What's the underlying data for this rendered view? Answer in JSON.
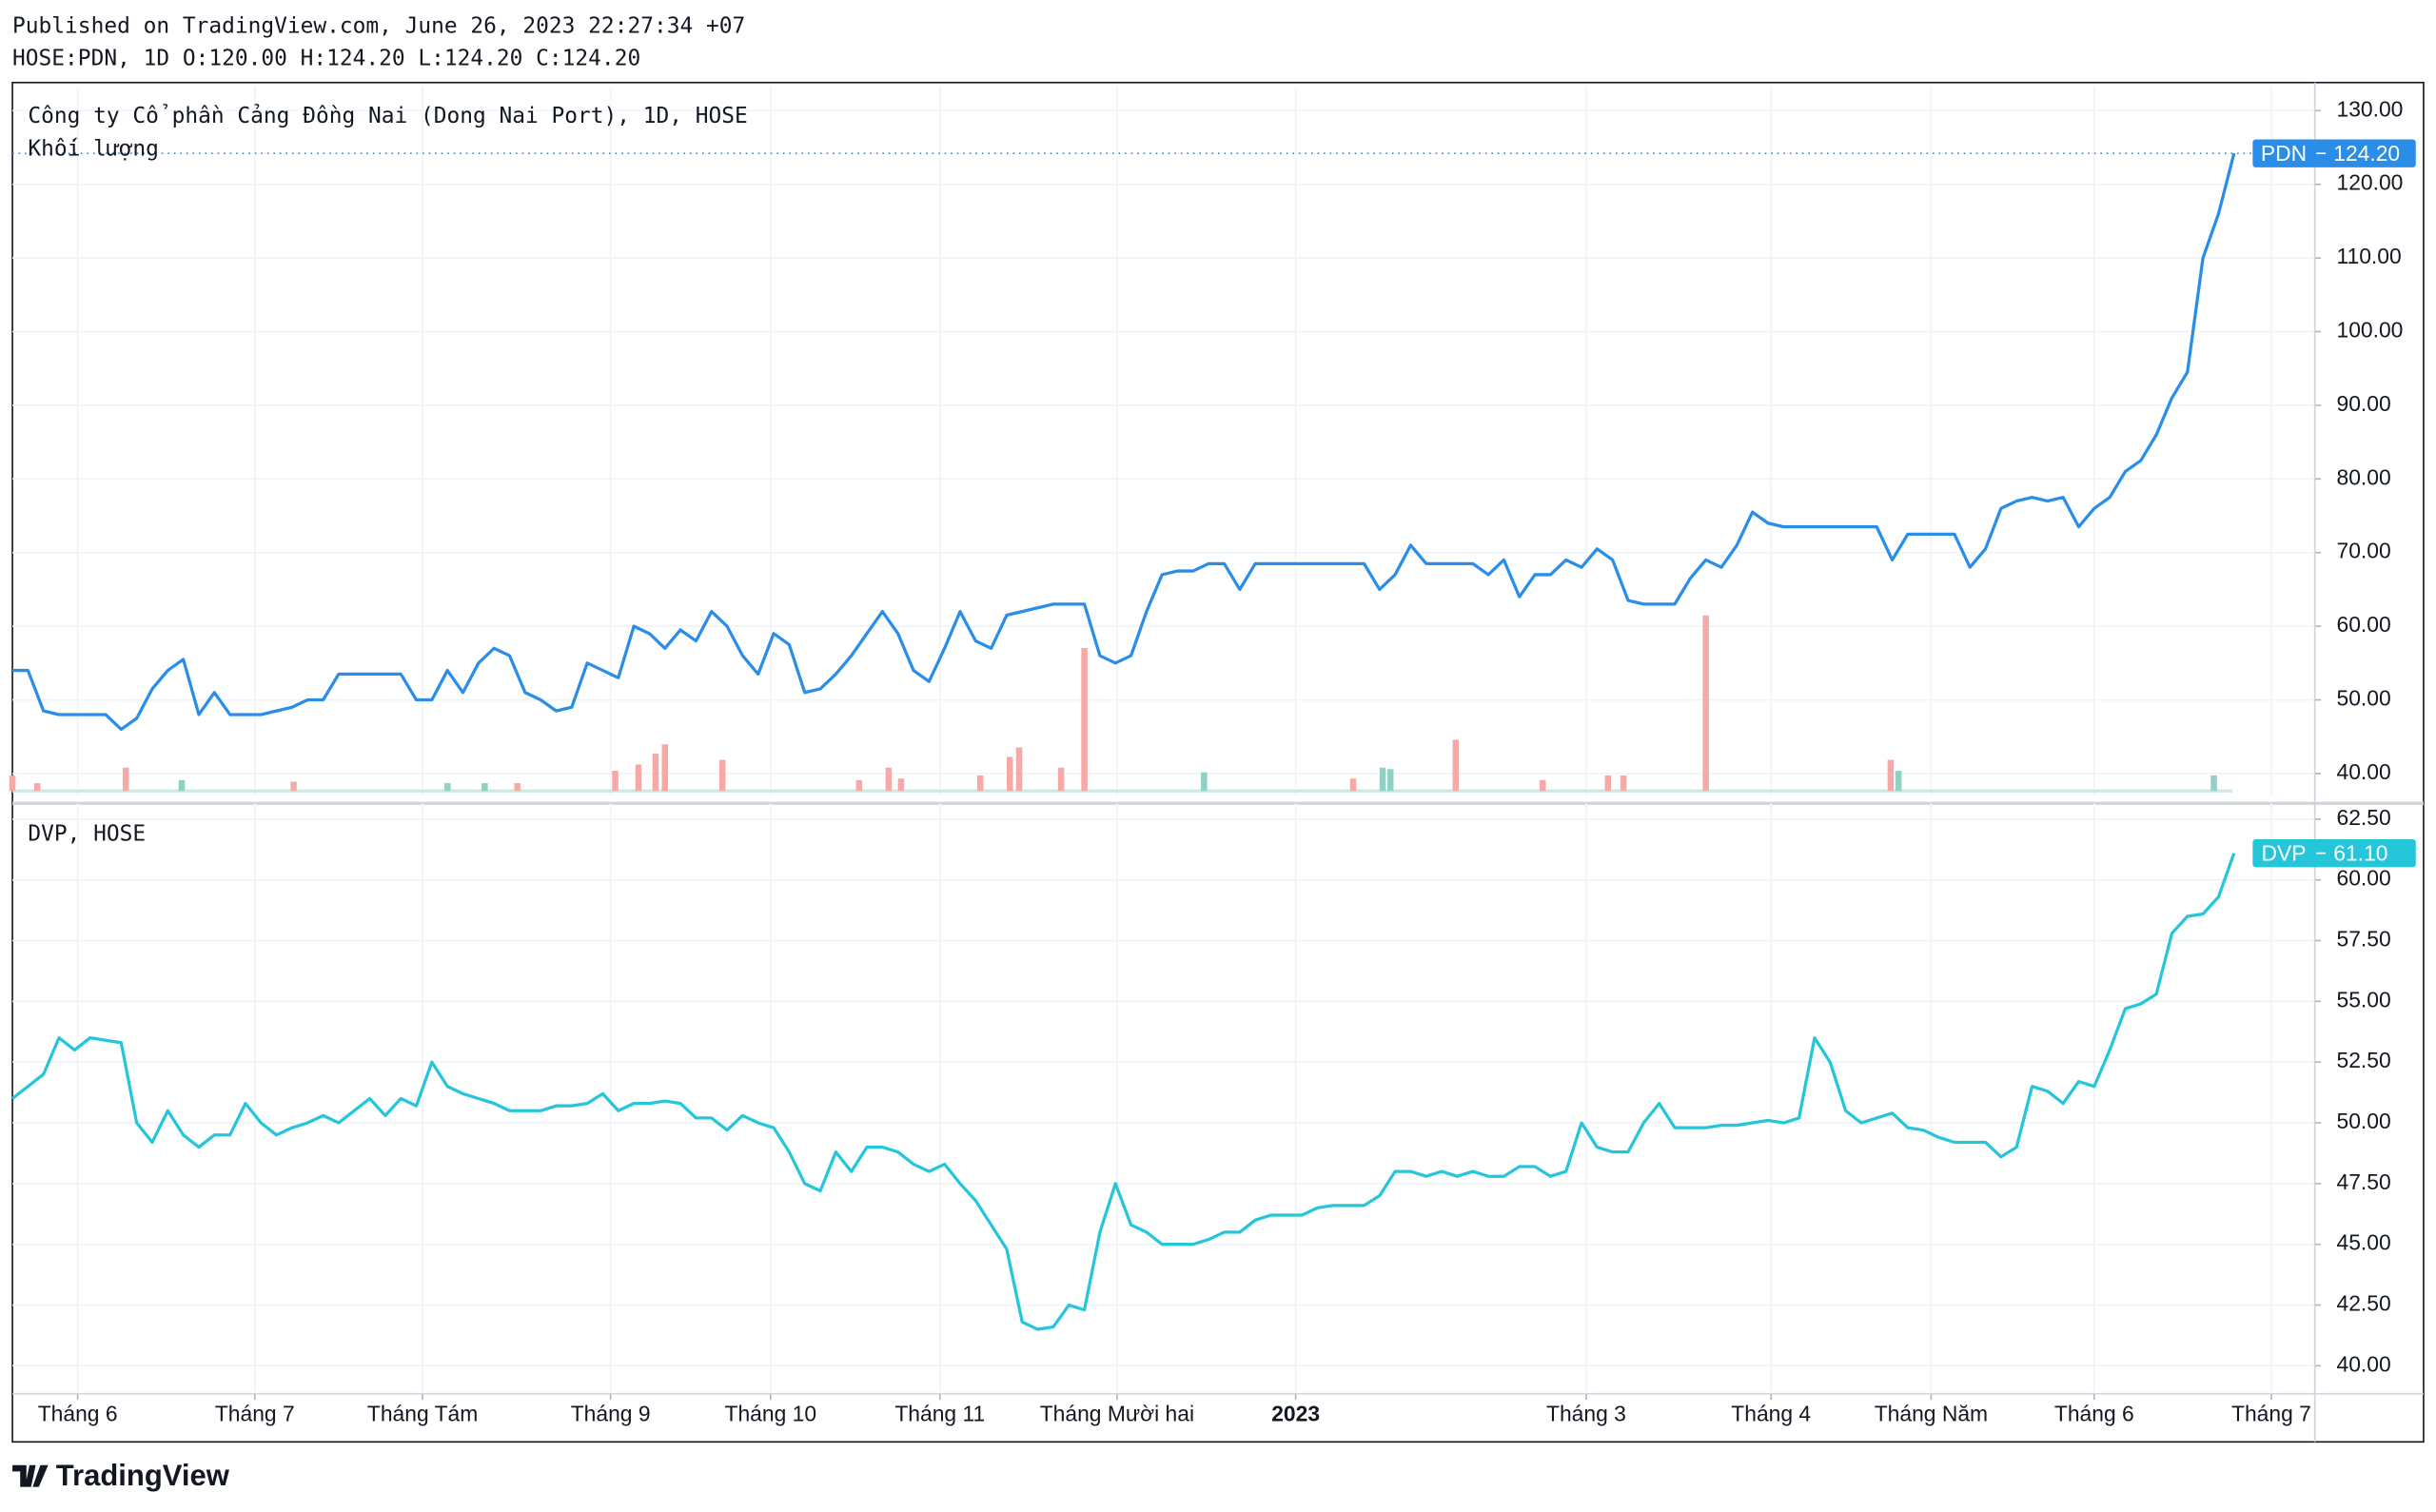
{
  "header": {
    "published": "Published on TradingView.com, June 26, 2023 22:27:34 +07",
    "ohlc": "HOSE:PDN, 1D O:120.00 H:124.20 L:124.20 C:124.20"
  },
  "brand": "TradingView",
  "chart_data": [
    {
      "type": "line",
      "title": "Công ty Cổ phần Cảng Đồng Nai (Dong Nai Port), 1D, HOSE",
      "series": [
        {
          "name": "PDN",
          "color": "#2a8ee8",
          "price_label": "124.20",
          "price_line": true,
          "values": [
            54,
            54,
            48.5,
            48,
            48,
            48,
            48,
            46,
            47.5,
            51.5,
            54,
            55.5,
            48,
            51,
            48,
            48,
            48,
            48.5,
            49,
            50,
            50,
            53.5,
            53.5,
            53.5,
            53.5,
            53.5,
            50,
            50,
            54,
            51,
            55,
            57,
            56,
            51,
            50,
            48.5,
            49,
            55,
            54,
            53,
            60,
            59,
            57,
            59.5,
            58,
            62,
            60,
            56,
            53.5,
            59,
            57.5,
            51,
            51.5,
            53.5,
            56,
            59,
            62,
            59,
            54,
            52.5,
            57,
            62,
            58,
            57,
            61.5,
            62,
            62.5,
            63,
            63,
            63,
            56,
            55,
            56,
            62,
            67,
            67.5,
            67.5,
            68.5,
            68.5,
            65,
            68.5,
            68.5,
            68.5,
            68.5,
            68.5,
            68.5,
            68.5,
            68.5,
            65,
            67,
            71,
            68.5,
            68.5,
            68.5,
            68.5,
            67,
            69,
            64,
            67,
            67,
            69,
            68,
            70.5,
            69,
            63.5,
            63,
            63,
            63,
            66.5,
            69,
            68,
            71,
            75.5,
            74,
            73.5,
            73.5,
            73.5,
            73.5,
            73.5,
            73.5,
            73.5,
            69,
            72.5,
            72.5,
            72.5,
            72.5,
            68,
            70.5,
            76,
            77,
            77.5,
            77,
            77.5,
            73.5,
            76,
            77.5,
            81,
            82.5,
            86,
            91,
            94.5,
            110,
            116,
            124.2
          ]
        }
      ],
      "volume": {
        "name": "Khối lượng",
        "x": [
          0,
          1.6,
          7.3,
          10.9,
          18.1,
          28,
          30.4,
          32.5,
          38.8,
          40.3,
          41.4,
          42,
          45.7,
          54.5,
          56.4,
          57.2,
          62.3,
          64.2,
          64.8,
          67.5,
          69,
          76.7,
          86.3,
          88.2,
          88.7,
          92.9,
          98.5,
          102.7,
          103.7,
          109,
          120.9,
          121.4,
          141.7
        ],
        "values": [
          10,
          5,
          15,
          7,
          6,
          5,
          5,
          5,
          13,
          17,
          24,
          30,
          20,
          7,
          15,
          8,
          10,
          22,
          28,
          15,
          92,
          12,
          8,
          15,
          14,
          33,
          7,
          10,
          10,
          113,
          20,
          13,
          10
        ],
        "colors": [
          "#f7a9a7",
          "#f7a9a7",
          "#f7a9a7",
          "#8fd1c2",
          "#f7a9a7",
          "#8fd1c2",
          "#8fd1c2",
          "#f7a9a7",
          "#f7a9a7",
          "#f7a9a7",
          "#f7a9a7",
          "#f7a9a7",
          "#f7a9a7",
          "#f7a9a7",
          "#f7a9a7",
          "#f7a9a7",
          "#f7a9a7",
          "#f7a9a7",
          "#f7a9a7",
          "#f7a9a7",
          "#f7a9a7",
          "#8fd1c2",
          "#f7a9a7",
          "#8fd1c2",
          "#8fd1c2",
          "#f7a9a7",
          "#f7a9a7",
          "#f7a9a7",
          "#f7a9a7",
          "#f7a9a7",
          "#f7a9a7",
          "#8fd1c2",
          "#8fd1c2"
        ]
      },
      "ylim": [
        37,
        133.4
      ],
      "yticks": [
        {
          "value": 40,
          "label": "40.00"
        },
        {
          "value": 50,
          "label": "50.00"
        },
        {
          "value": 60,
          "label": "60.00"
        },
        {
          "value": 70,
          "label": "70.00"
        },
        {
          "value": 80,
          "label": "80.00"
        },
        {
          "value": 90,
          "label": "90.00"
        },
        {
          "value": 100,
          "label": "100.00"
        },
        {
          "value": 110,
          "label": "110.00"
        },
        {
          "value": 120,
          "label": "120.00"
        },
        {
          "value": 130,
          "label": "130.00"
        }
      ],
      "grid": true
    },
    {
      "type": "line",
      "title": "DVP, HOSE",
      "series": [
        {
          "name": "DVP",
          "color": "#26c6da",
          "price_label": "61.10",
          "values": [
            51,
            51.5,
            52,
            53.5,
            53,
            53.5,
            53.4,
            53.3,
            50,
            49.2,
            50.5,
            49.5,
            49,
            49.5,
            49.5,
            50.8,
            50,
            49.5,
            49.8,
            50,
            50.3,
            50,
            50.5,
            51,
            50.3,
            51,
            50.7,
            52.5,
            51.5,
            51.2,
            51,
            50.8,
            50.5,
            50.5,
            50.5,
            50.7,
            50.7,
            50.8,
            51.2,
            50.5,
            50.8,
            50.8,
            50.9,
            50.8,
            50.2,
            50.2,
            49.7,
            50.3,
            50,
            49.8,
            48.8,
            47.5,
            47.2,
            48.8,
            48,
            49,
            49,
            48.8,
            48.3,
            48,
            48.3,
            47.5,
            46.8,
            45.8,
            44.8,
            41.8,
            41.5,
            41.6,
            42.5,
            42.3,
            45.5,
            47.5,
            45.8,
            45.5,
            45,
            45,
            45,
            45.2,
            45.5,
            45.5,
            46,
            46.2,
            46.2,
            46.2,
            46.5,
            46.6,
            46.6,
            46.6,
            47,
            48,
            48,
            47.8,
            48,
            47.8,
            48,
            47.8,
            47.8,
            48.2,
            48.2,
            47.8,
            48,
            50,
            49,
            48.8,
            48.8,
            50,
            50.8,
            49.8,
            49.8,
            49.8,
            49.9,
            49.9,
            50,
            50.1,
            50,
            50.2,
            53.5,
            52.5,
            50.5,
            50,
            50.2,
            50.4,
            49.8,
            49.7,
            49.4,
            49.2,
            49.2,
            49.2,
            48.6,
            49,
            51.5,
            51.3,
            50.8,
            51.7,
            51.5,
            53,
            54.7,
            54.9,
            55.3,
            57.8,
            58.5,
            58.6,
            59.3,
            61.1
          ]
        }
      ],
      "ylim": [
        38.85,
        63.15
      ],
      "yticks": [
        {
          "value": 40,
          "label": "40.00"
        },
        {
          "value": 42.5,
          "label": "42.50"
        },
        {
          "value": 45,
          "label": "45.00"
        },
        {
          "value": 47.5,
          "label": "47.50"
        },
        {
          "value": 50,
          "label": "50.00"
        },
        {
          "value": 52.5,
          "label": "52.50"
        },
        {
          "value": 55,
          "label": "55.00"
        },
        {
          "value": 57.5,
          "label": "57.50"
        },
        {
          "value": 60,
          "label": "60.00"
        },
        {
          "value": 62.5,
          "label": "62.50"
        }
      ],
      "xlim": [
        0,
        148.2
      ],
      "xticks": [
        {
          "value": 4.2,
          "label": "Tháng 6"
        },
        {
          "value": 15.6,
          "label": "Tháng 7"
        },
        {
          "value": 26.4,
          "label": "Tháng Tám"
        },
        {
          "value": 38.5,
          "label": "Tháng 9"
        },
        {
          "value": 48.8,
          "label": "Tháng 10"
        },
        {
          "value": 59.7,
          "label": "Tháng 11"
        },
        {
          "value": 71.1,
          "label": "Tháng Mười hai"
        },
        {
          "value": 82.6,
          "label": "2023"
        },
        {
          "value": 101.3,
          "label": "Tháng 3"
        },
        {
          "value": 113.2,
          "label": "Tháng 4"
        },
        {
          "value": 123.5,
          "label": "Tháng Năm"
        },
        {
          "value": 134,
          "label": "Tháng 6"
        },
        {
          "value": 145.4,
          "label": "Tháng 7"
        }
      ],
      "grid": true
    }
  ]
}
